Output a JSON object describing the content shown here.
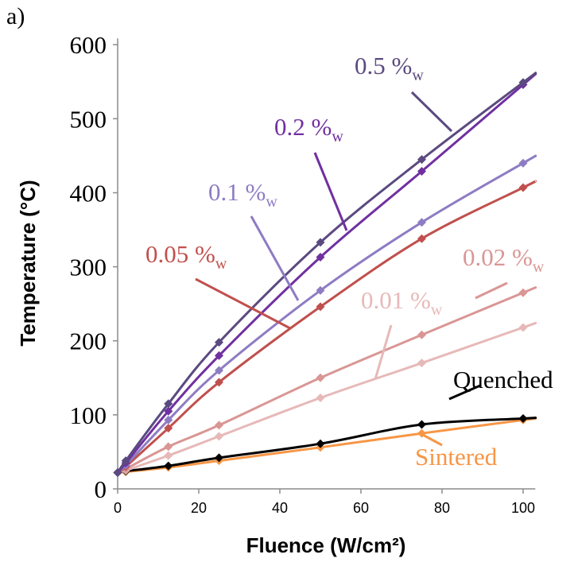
{
  "chart_data": {
    "type": "line",
    "panel_label": "a)",
    "xlabel": "Fluence (W/cm²)",
    "ylabel": "Temperature (°C)",
    "xlim": [
      0,
      103
    ],
    "ylim": [
      0,
      600
    ],
    "x_ticks": [
      "0",
      "20",
      "40",
      "60",
      "80",
      "100"
    ],
    "y_ticks": [
      "0",
      "100",
      "200",
      "300",
      "400",
      "500",
      "600"
    ],
    "grid": false,
    "x": [
      0,
      2,
      12.5,
      25,
      50,
      75,
      100
    ],
    "series": [
      {
        "name": "0.5 %",
        "sub": "w",
        "color": "#5b4a80",
        "values": [
          22,
          38,
          115,
          198,
          333,
          445,
          549
        ]
      },
      {
        "name": "0.2 %",
        "sub": "w",
        "color": "#7030a0",
        "values": [
          22,
          35,
          105,
          180,
          313,
          429,
          546
        ]
      },
      {
        "name": "0.1 %",
        "sub": "w",
        "color": "#8e7cc3",
        "values": [
          22,
          32,
          93,
          160,
          268,
          360,
          440
        ]
      },
      {
        "name": "0.05 %",
        "sub": "w",
        "color": "#c0504d",
        "values": [
          22,
          30,
          82,
          144,
          246,
          338,
          407
        ]
      },
      {
        "name": "0.02 %",
        "sub": "w",
        "color": "#d99694",
        "values": [
          22,
          27,
          57,
          86,
          150,
          208,
          265
        ]
      },
      {
        "name": "0.01 %",
        "sub": "w",
        "color": "#e6b9b8",
        "values": [
          22,
          25,
          45,
          71,
          123,
          170,
          218
        ]
      },
      {
        "name": "Quenched",
        "sub": "",
        "color": "#000000",
        "values": [
          22,
          24,
          31,
          42,
          61,
          87,
          95
        ]
      },
      {
        "name": "Sintered",
        "sub": "",
        "color": "#f79646",
        "values": [
          22,
          23,
          29,
          38,
          56,
          75,
          93
        ]
      }
    ]
  }
}
